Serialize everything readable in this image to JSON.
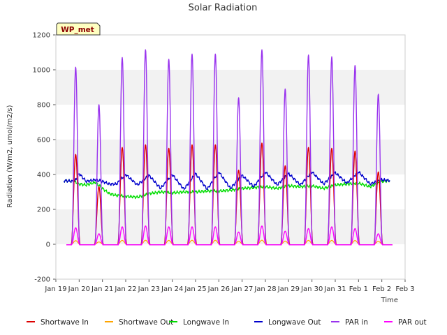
{
  "chart_data": {
    "type": "line",
    "title": "Solar Radiation",
    "xlabel": "Time",
    "ylabel": "Radiation (W/m2, umol/m2/s)",
    "badge": "WP_met",
    "ylim": [
      -200,
      1200
    ],
    "xlim": [
      0,
      15
    ],
    "y_ticks": [
      -200,
      0,
      200,
      400,
      600,
      800,
      1000,
      1200
    ],
    "x_ticks": [
      {
        "x": 0,
        "label": "Jan 19"
      },
      {
        "x": 1,
        "label": "Jan 20"
      },
      {
        "x": 2,
        "label": "Jan 21"
      },
      {
        "x": 3,
        "label": "Jan 22"
      },
      {
        "x": 4,
        "label": "Jan 23"
      },
      {
        "x": 5,
        "label": "Jan 24"
      },
      {
        "x": 6,
        "label": "Jan 25"
      },
      {
        "x": 7,
        "label": "Jan 26"
      },
      {
        "x": 8,
        "label": "Jan 27"
      },
      {
        "x": 9,
        "label": "Jan 28"
      },
      {
        "x": 10,
        "label": "Jan 29"
      },
      {
        "x": 11,
        "label": "Jan 30"
      },
      {
        "x": 12,
        "label": "Jan 31"
      },
      {
        "x": 13,
        "label": "Feb 1"
      },
      {
        "x": 14,
        "label": "Feb 2"
      },
      {
        "x": 15,
        "label": "Feb 3"
      }
    ],
    "grid": "horizontal bands",
    "legend_position": "bottom",
    "daily_peaks": {
      "day_x": [
        0.85,
        1.85,
        2.85,
        3.85,
        4.85,
        5.85,
        6.85,
        7.85,
        8.85,
        9.85,
        10.85,
        11.85,
        12.85,
        13.85
      ],
      "shortwave_in": [
        515,
        330,
        555,
        570,
        550,
        570,
        570,
        425,
        580,
        450,
        555,
        550,
        535,
        415
      ],
      "par_in": [
        1015,
        800,
        1070,
        1115,
        1060,
        1090,
        1090,
        840,
        1115,
        890,
        1085,
        1075,
        1025,
        860
      ],
      "par_out": [
        95,
        60,
        100,
        105,
        100,
        100,
        100,
        70,
        105,
        75,
        90,
        100,
        90,
        60
      ]
    },
    "longwave": {
      "x": [
        0.35,
        0.8,
        1.0,
        1.3,
        1.7,
        2.0,
        2.3,
        2.6,
        3.0,
        3.5,
        4.0,
        4.5,
        5.0,
        5.5,
        6.0,
        6.5,
        7.0,
        7.5,
        8.0,
        8.5,
        9.0,
        9.5,
        10.0,
        10.5,
        11.0,
        11.5,
        12.0,
        12.5,
        13.0,
        13.5,
        14.0,
        14.35
      ],
      "longwave_in": [
        365,
        360,
        345,
        340,
        355,
        320,
        290,
        280,
        275,
        270,
        290,
        300,
        295,
        300,
        300,
        305,
        305,
        310,
        320,
        325,
        330,
        320,
        335,
        330,
        335,
        320,
        340,
        345,
        350,
        330,
        360,
        365
      ],
      "longwave_out": [
        365,
        360,
        405,
        360,
        370,
        360,
        345,
        345,
        400,
        340,
        395,
        320,
        400,
        315,
        405,
        315,
        415,
        320,
        395,
        330,
        415,
        340,
        405,
        340,
        415,
        345,
        410,
        350,
        415,
        345,
        370,
        365
      ]
    },
    "series": [
      {
        "name": "Shortwave In",
        "color": "#dd0000"
      },
      {
        "name": "Shortwave Out",
        "color": "#ffa500"
      },
      {
        "name": "Longwave In",
        "color": "#00dd00"
      },
      {
        "name": "Longwave Out",
        "color": "#0000cc"
      },
      {
        "name": "PAR in",
        "color": "#9933ee"
      },
      {
        "name": "PAR out",
        "color": "#ff00ff"
      }
    ]
  }
}
